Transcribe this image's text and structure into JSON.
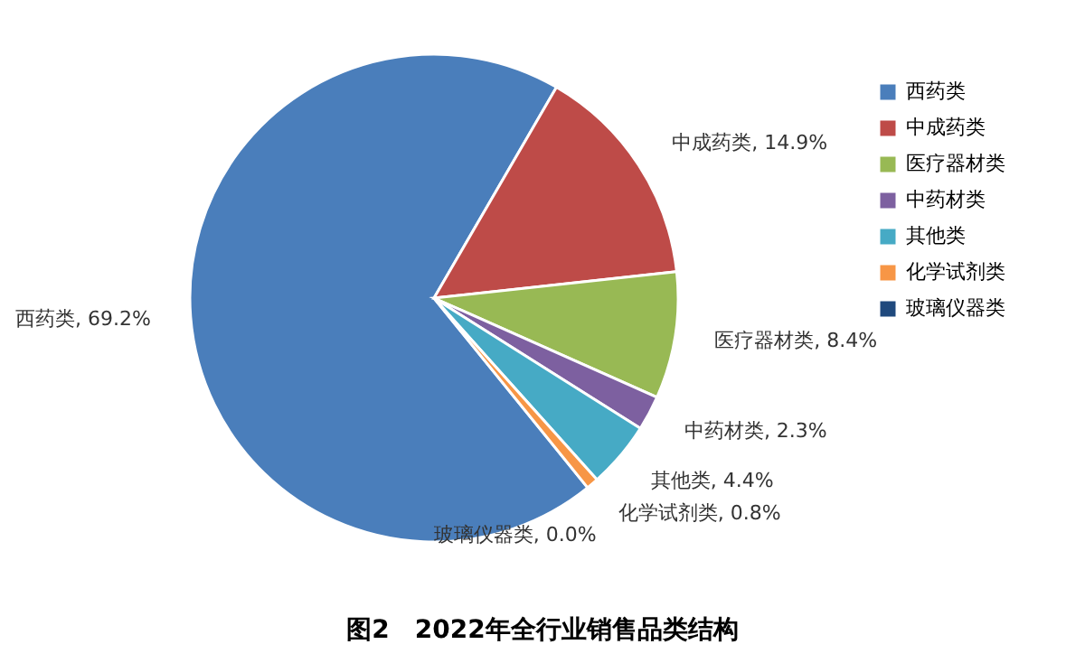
{
  "chart_data": {
    "type": "pie",
    "title": "图2　2022年全行业销售品类结构",
    "categories": [
      "西药类",
      "中成药类",
      "医疗器材类",
      "中药材类",
      "其他类",
      "化学试剂类",
      "玻璃仪器类"
    ],
    "values": [
      69.2,
      14.9,
      8.4,
      2.3,
      4.4,
      0.8,
      0.0
    ],
    "colors": [
      "#4a7ebb",
      "#be4b48",
      "#98b954",
      "#7d60a0",
      "#46aac5",
      "#f79646",
      "#1f497d"
    ],
    "value_labels": [
      "西药类, 69.2%",
      "中成药类, 14.9%",
      "医疗器材类, 8.4%",
      "中药材类, 2.3%",
      "其他类, 4.4%",
      "化学试剂类, 0.8%",
      "玻璃仪器类, 0.0%"
    ],
    "legend": "right"
  }
}
